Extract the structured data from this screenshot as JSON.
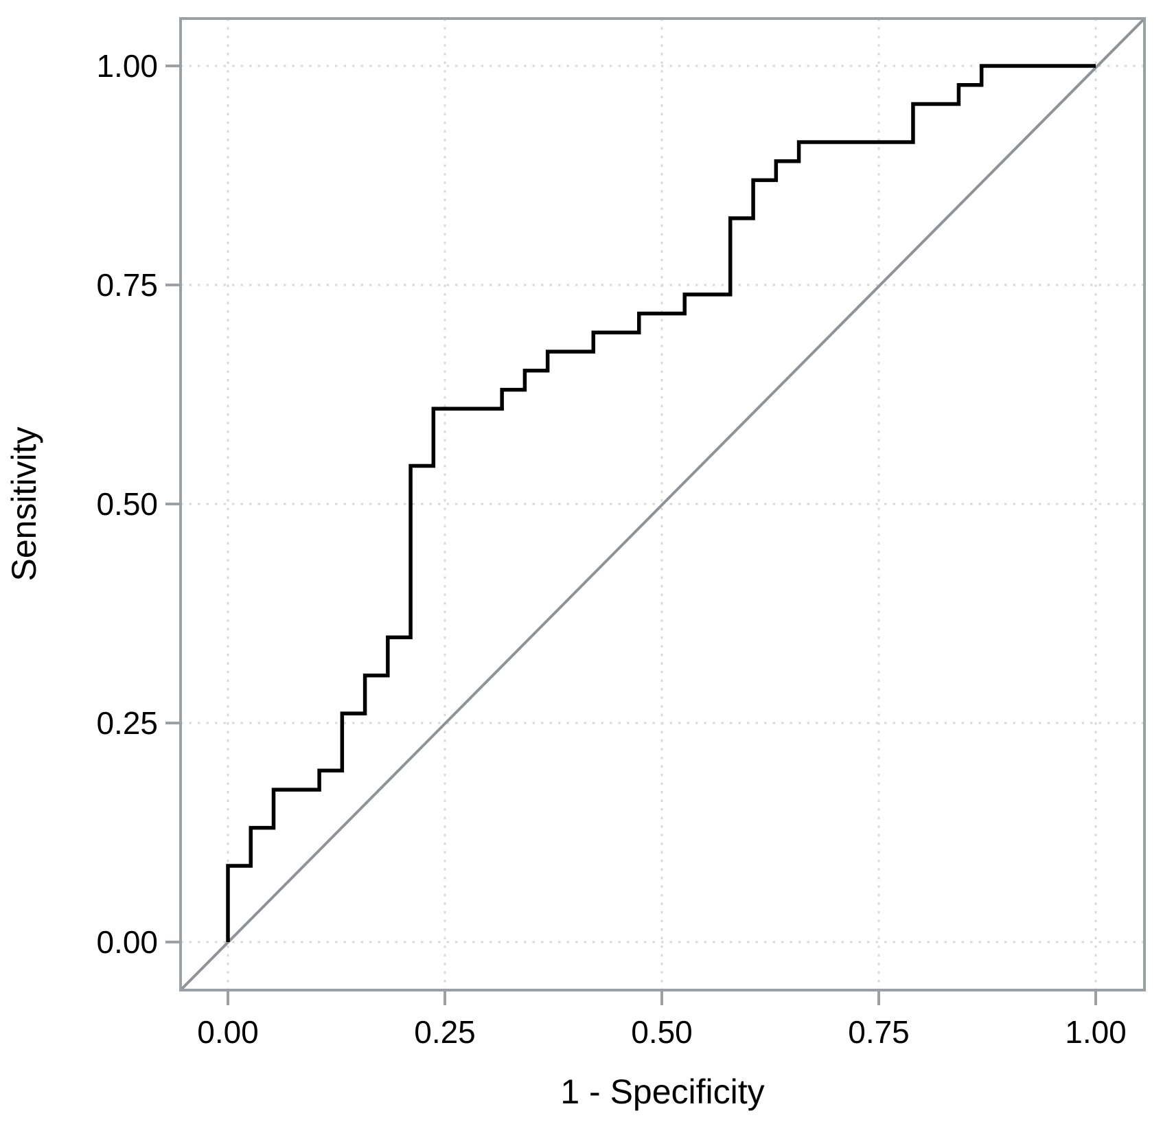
{
  "chart_data": {
    "type": "line",
    "subtype": "roc-step-curve",
    "title": "",
    "xlabel": "1 - Specificity",
    "ylabel": "Sensitivity",
    "xlim": [
      0,
      1
    ],
    "ylim": [
      0,
      1
    ],
    "grid": "dotted",
    "legend_position": "none",
    "x_ticks": {
      "values": [
        0,
        0.25,
        0.5,
        0.75,
        1
      ],
      "labels": [
        "0.00",
        "0.25",
        "0.50",
        "0.75",
        "1.00"
      ]
    },
    "y_ticks": {
      "values": [
        0,
        0.25,
        0.5,
        0.75,
        1
      ],
      "labels": [
        "0.00",
        "0.25",
        "0.50",
        "0.75",
        "1.00"
      ]
    },
    "colors": {
      "curve": "#000000",
      "diagonal": "#8d9399",
      "border": "#9aa0a6",
      "grid": "#d9d9d9",
      "tick": "#9aa0a6",
      "text": "#000000"
    },
    "series": [
      {
        "name": "roc-curve",
        "draw": "step-polyline",
        "color_key": "curve",
        "points": [
          [
            0.0,
            0.0
          ],
          [
            0.0,
            0.087
          ],
          [
            0.0263,
            0.087
          ],
          [
            0.0263,
            0.1304
          ],
          [
            0.0526,
            0.1304
          ],
          [
            0.0526,
            0.1739
          ],
          [
            0.1053,
            0.1739
          ],
          [
            0.1053,
            0.1957
          ],
          [
            0.1316,
            0.1957
          ],
          [
            0.1316,
            0.2609
          ],
          [
            0.1579,
            0.2609
          ],
          [
            0.1579,
            0.3043
          ],
          [
            0.1842,
            0.3043
          ],
          [
            0.1842,
            0.3478
          ],
          [
            0.2105,
            0.3478
          ],
          [
            0.2105,
            0.5435
          ],
          [
            0.2368,
            0.5435
          ],
          [
            0.2368,
            0.6087
          ],
          [
            0.3158,
            0.6087
          ],
          [
            0.3158,
            0.6304
          ],
          [
            0.3421,
            0.6304
          ],
          [
            0.3421,
            0.6522
          ],
          [
            0.3684,
            0.6522
          ],
          [
            0.3684,
            0.6739
          ],
          [
            0.4211,
            0.6739
          ],
          [
            0.4211,
            0.6957
          ],
          [
            0.4737,
            0.6957
          ],
          [
            0.4737,
            0.7174
          ],
          [
            0.5263,
            0.7174
          ],
          [
            0.5263,
            0.7391
          ],
          [
            0.5789,
            0.7391
          ],
          [
            0.5789,
            0.8261
          ],
          [
            0.6053,
            0.8261
          ],
          [
            0.6053,
            0.8696
          ],
          [
            0.6316,
            0.8696
          ],
          [
            0.6316,
            0.8913
          ],
          [
            0.6579,
            0.8913
          ],
          [
            0.6579,
            0.913
          ],
          [
            0.7895,
            0.913
          ],
          [
            0.7895,
            0.9565
          ],
          [
            0.8421,
            0.9565
          ],
          [
            0.8421,
            0.9783
          ],
          [
            0.8684,
            0.9783
          ],
          [
            0.8684,
            1.0
          ],
          [
            1.0,
            1.0
          ]
        ]
      },
      {
        "name": "chance-diagonal",
        "draw": "straight-line",
        "color_key": "diagonal",
        "points": [
          [
            0,
            0
          ],
          [
            1,
            1
          ]
        ],
        "extends_to_panel_edges": true
      }
    ]
  }
}
